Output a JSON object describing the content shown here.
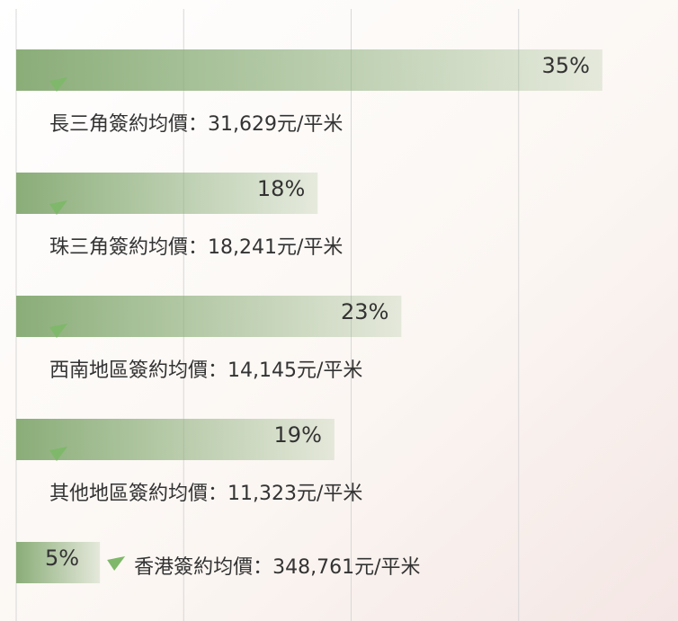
{
  "chart_data": {
    "type": "hbar",
    "categories": [
      "長三角簽約均價：31,629元/平米",
      "珠三角簽約均價：18,241元/平米",
      "西南地區簽約均價：14,145元/平米",
      "其他地區簽約均價：11,323元/平米",
      "香港簽約均價：348,761元/平米"
    ],
    "values": [
      35,
      18,
      23,
      19,
      5
    ],
    "value_labels": [
      "35%",
      "18%",
      "23%",
      "19%",
      "5%"
    ],
    "color": "#8aad78",
    "xlim": [
      0,
      40
    ],
    "xticks": [
      0,
      10,
      20,
      30
    ],
    "grid": true
  }
}
